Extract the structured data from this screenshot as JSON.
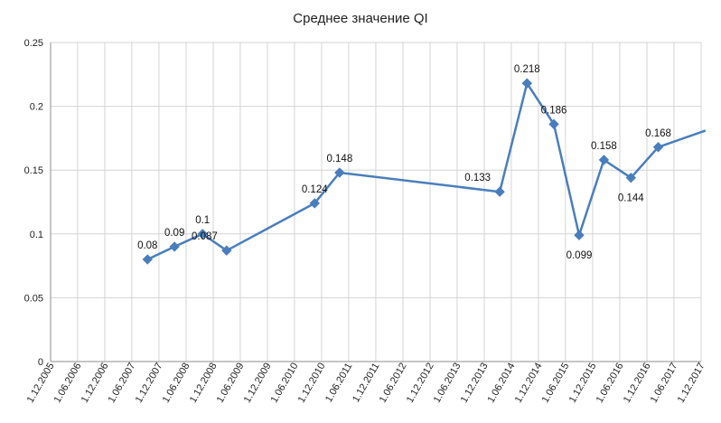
{
  "chart_data": {
    "type": "line",
    "title": "Среднее значение QI",
    "xlabel": "",
    "ylabel": "",
    "ylim": [
      0,
      0.25
    ],
    "yticks": [
      "0",
      "0.05",
      "0.1",
      "0.15",
      "0.2",
      "0.25"
    ],
    "categories": [
      "1.12.2005",
      "1.06.2006",
      "1.12.2006",
      "1.06.2007",
      "1.12.2007",
      "1.06.2008",
      "1.12.2008",
      "1.06.2009",
      "1.12.2009",
      "1.06.2010",
      "1.12.2010",
      "1.06.2011",
      "1.12.2011",
      "1.06.2012",
      "1.12.2012",
      "1.06.2013",
      "1.12.2013",
      "1.06.2014",
      "1.12.2014",
      "1.06.2015",
      "1.12.2015",
      "1.06.2016",
      "1.12.2016",
      "1.06.2017",
      "1.12.2017"
    ],
    "grid": true,
    "legend": "none",
    "series": [
      {
        "color": "#4a7ebb",
        "points": [
          {
            "x": "2007-09-15",
            "y": 0.08,
            "label": "0.08"
          },
          {
            "x": "2008-03-15",
            "y": 0.09,
            "label": "0.09"
          },
          {
            "x": "2008-09-20",
            "y": 0.1,
            "label": "0.1"
          },
          {
            "x": "2009-03-01",
            "y": 0.087,
            "label": "0.087"
          },
          {
            "x": "2010-10-15",
            "y": 0.124,
            "label": "0.124"
          },
          {
            "x": "2011-04-01",
            "y": 0.148,
            "label": "0.148"
          },
          {
            "x": "2014-03-15",
            "y": 0.133,
            "label": "0.133"
          },
          {
            "x": "2014-09-15",
            "y": 0.218,
            "label": "0.218"
          },
          {
            "x": "2015-03-15",
            "y": 0.186,
            "label": "0.186"
          },
          {
            "x": "2015-09-01",
            "y": 0.099,
            "label": "0.099"
          },
          {
            "x": "2016-02-15",
            "y": 0.158,
            "label": "0.158"
          },
          {
            "x": "2016-08-15",
            "y": 0.144,
            "label": "0.144"
          },
          {
            "x": "2017-02-15",
            "y": 0.168,
            "label": "0.168"
          },
          {
            "x": "2017-12-31",
            "y": 0.181,
            "label": ""
          }
        ]
      }
    ]
  }
}
